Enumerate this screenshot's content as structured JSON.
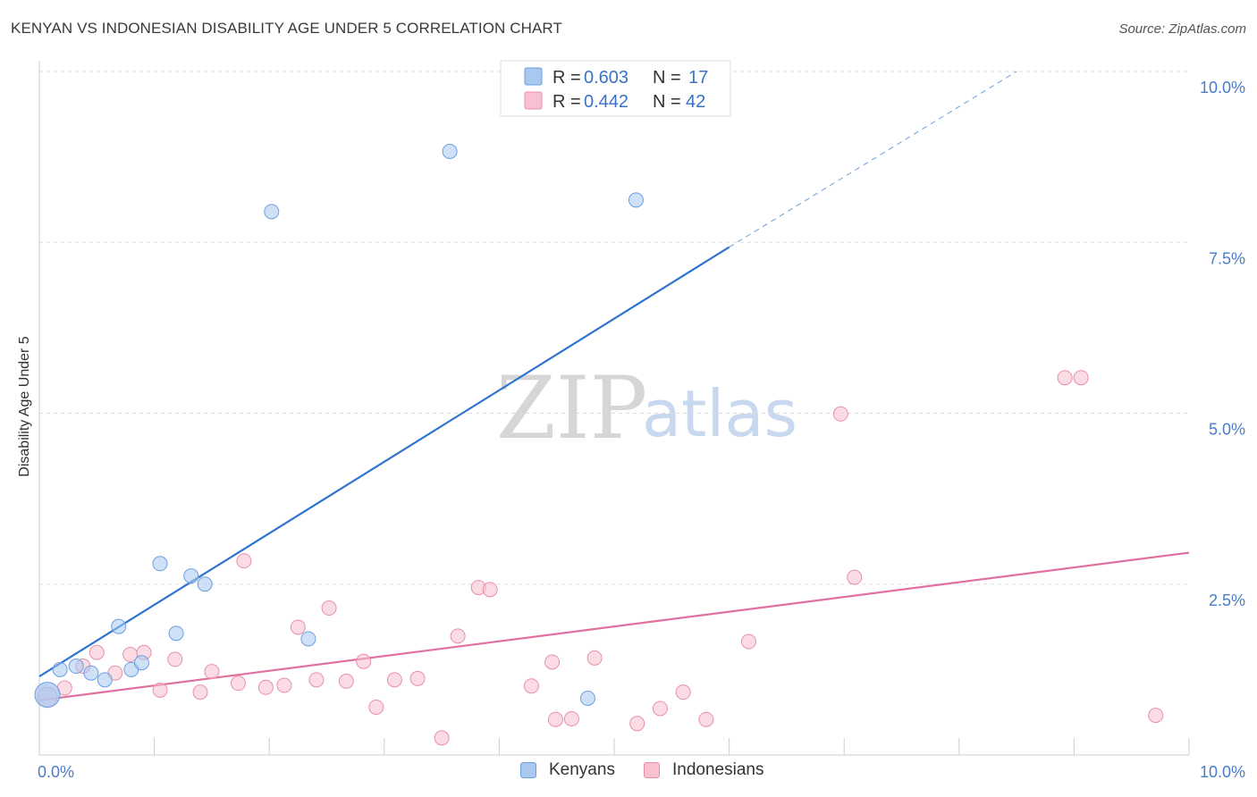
{
  "header": {
    "title": "KENYAN VS INDONESIAN DISABILITY AGE UNDER 5 CORRELATION CHART",
    "source": "Source: ZipAtlas.com"
  },
  "watermark": {
    "zip": "ZIP",
    "atlas": "atlas"
  },
  "legend_box": {
    "rows": [
      {
        "r_label": "R = ",
        "r_value": "0.603",
        "n_label": "N = ",
        "n_value": "17",
        "color": "#a8c8f0",
        "border": "#6a9fe0"
      },
      {
        "r_label": "R = ",
        "r_value": "0.442",
        "n_label": "N = ",
        "n_value": "42",
        "color": "#f8c0d0",
        "border": "#e890a8"
      }
    ]
  },
  "bottom_legend": {
    "kenyans": "Kenyans",
    "indonesians": "Indonesians"
  },
  "colors": {
    "kenyan_fill": "#a8c8f0",
    "kenyan_stroke": "#6a9fe0",
    "kenyan_line": "#2f74d0",
    "indonesian_fill": "#f8c0d0",
    "indonesian_stroke": "#e890a8",
    "indonesian_line": "#e070a0",
    "axis_label": "#4a7cc7",
    "grid": "#dddddd"
  },
  "chart_data": {
    "type": "scatter",
    "title": "KENYAN VS INDONESIAN DISABILITY AGE UNDER 5 CORRELATION CHART",
    "xlabel": "",
    "ylabel": "Disability Age Under 5",
    "xlim": [
      0,
      10
    ],
    "ylim": [
      0,
      10
    ],
    "x_tick_labels": [
      "0.0%",
      "10.0%"
    ],
    "y_ticks": [
      2.5,
      5.0,
      7.5,
      10.0
    ],
    "y_tick_labels": [
      "2.5%",
      "5.0%",
      "7.5%",
      "10.0%"
    ],
    "grid": true,
    "series": [
      {
        "name": "Kenyans",
        "r": 0.603,
        "n": 17,
        "points": [
          [
            0.07,
            0.88
          ],
          [
            0.18,
            1.25
          ],
          [
            0.32,
            1.3
          ],
          [
            0.45,
            1.2
          ],
          [
            0.57,
            1.1
          ],
          [
            0.69,
            1.88
          ],
          [
            0.8,
            1.25
          ],
          [
            0.89,
            1.35
          ],
          [
            1.05,
            2.8
          ],
          [
            1.19,
            1.78
          ],
          [
            1.32,
            2.62
          ],
          [
            1.44,
            2.5
          ],
          [
            2.02,
            7.95
          ],
          [
            2.34,
            1.7
          ],
          [
            3.57,
            8.83
          ],
          [
            4.77,
            0.83
          ],
          [
            5.19,
            8.12
          ]
        ],
        "trend": {
          "x0": 0,
          "y0": 1.15,
          "x1": 6.0,
          "y1": 7.43,
          "dash_x1": 8.5,
          "dash_y1": 10.0
        }
      },
      {
        "name": "Indonesians",
        "r": 0.442,
        "n": 42,
        "points": [
          [
            0.07,
            0.85
          ],
          [
            0.22,
            0.98
          ],
          [
            0.38,
            1.3
          ],
          [
            0.5,
            1.5
          ],
          [
            0.66,
            1.2
          ],
          [
            0.79,
            1.47
          ],
          [
            0.91,
            1.5
          ],
          [
            1.05,
            0.95
          ],
          [
            1.18,
            1.4
          ],
          [
            1.4,
            0.92
          ],
          [
            1.5,
            1.22
          ],
          [
            1.73,
            1.05
          ],
          [
            1.78,
            2.84
          ],
          [
            1.97,
            0.99
          ],
          [
            2.13,
            1.02
          ],
          [
            2.25,
            1.87
          ],
          [
            2.41,
            1.1
          ],
          [
            2.52,
            2.15
          ],
          [
            2.67,
            1.08
          ],
          [
            2.82,
            1.37
          ],
          [
            2.93,
            0.7
          ],
          [
            3.09,
            1.1
          ],
          [
            3.29,
            1.12
          ],
          [
            3.5,
            0.25
          ],
          [
            3.64,
            1.74
          ],
          [
            3.82,
            2.45
          ],
          [
            3.92,
            2.42
          ],
          [
            4.28,
            1.01
          ],
          [
            4.46,
            1.36
          ],
          [
            4.49,
            0.52
          ],
          [
            4.63,
            0.53
          ],
          [
            4.83,
            1.42
          ],
          [
            5.2,
            0.46
          ],
          [
            5.4,
            0.68
          ],
          [
            5.6,
            0.92
          ],
          [
            5.8,
            0.52
          ],
          [
            6.17,
            1.66
          ],
          [
            6.97,
            4.99
          ],
          [
            7.09,
            2.6
          ],
          [
            8.92,
            5.52
          ],
          [
            9.06,
            5.52
          ],
          [
            9.71,
            0.58
          ]
        ],
        "trend": {
          "x0": 0,
          "y0": 0.8,
          "x1": 10,
          "y1": 2.96
        }
      }
    ]
  }
}
